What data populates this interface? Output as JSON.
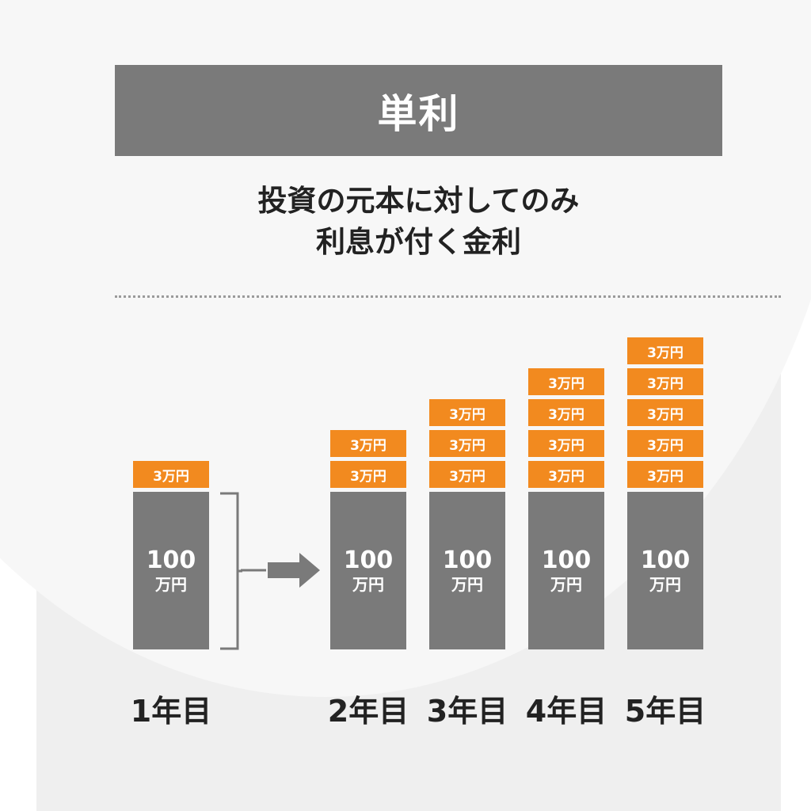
{
  "title": "単利",
  "subtitle": {
    "line1": "投資の元本に対してのみ",
    "line2": "利息が付く金利"
  },
  "chart_data": {
    "type": "bar",
    "categories": [
      "1年目",
      "2年目",
      "3年目",
      "4年目",
      "5年目"
    ],
    "principal": {
      "label_amount": "100",
      "label_unit": "万円",
      "value": 100
    },
    "interest_block_label": "3万円",
    "interest_block_value": 3,
    "interest_blocks_per_year": [
      1,
      2,
      3,
      4,
      5
    ],
    "colors": {
      "principal": "#7a7a7a",
      "interest": "#f28a1f"
    }
  },
  "colors": {
    "title_bar": "#7a7a7a",
    "accent": "#f28a1f",
    "text": "#222222"
  }
}
